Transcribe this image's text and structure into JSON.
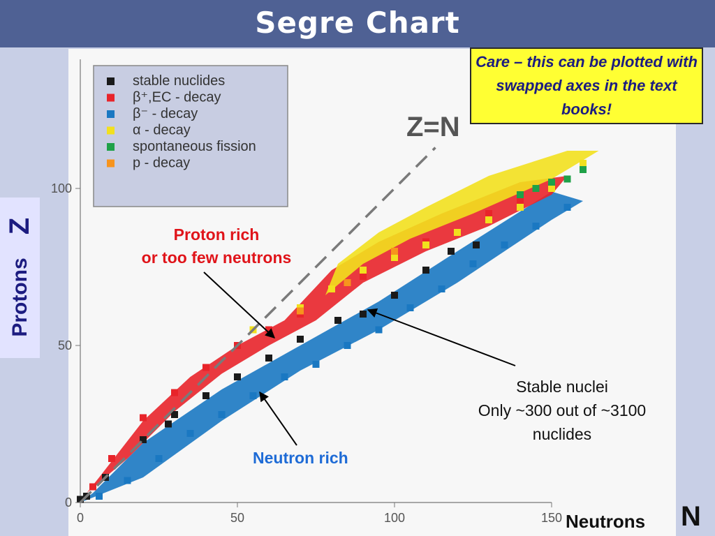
{
  "slide": {
    "title": "Segre Chart",
    "care_note": "Care – this can be plotted with swapped axes in the text books!",
    "zn_label": "Z=N",
    "z_letter": "Z",
    "protons_label": "Protons",
    "neutrons_label": "Neutrons",
    "n_letter": "N",
    "annotations": {
      "proton_rich_line1": "Proton rich",
      "proton_rich_line2": "or too few neutrons",
      "neutron_rich": "Neutron rich",
      "stable_line1": "Stable nuclei",
      "stable_line2": "Only ~300 out of ~3100",
      "stable_line3": "nuclides"
    }
  },
  "chart_data": {
    "type": "scatter",
    "xlim": [
      0,
      190
    ],
    "ylim": [
      0,
      125
    ],
    "x_ticks": [
      0,
      50,
      100,
      150
    ],
    "y_ticks": [
      0,
      50,
      100
    ],
    "x_tick_labels": [
      "0",
      "50",
      "100",
      "150"
    ],
    "y_tick_labels": [
      "0",
      "50",
      "100"
    ],
    "legend_position": "top-left",
    "legend": [
      {
        "label": "stable nuclides",
        "color": "#1a1a1a"
      },
      {
        "label": "β⁺,EC - decay",
        "color": "#e8242a"
      },
      {
        "label": "β⁻ - decay",
        "color": "#1a78c2"
      },
      {
        "label": "α - decay",
        "color": "#f2e01e"
      },
      {
        "label": "spontaneous fission",
        "color": "#1fa148"
      },
      {
        "label": "p - decay",
        "color": "#f7941d"
      }
    ],
    "reference_line": {
      "label": "Z=N",
      "from": [
        0,
        0
      ],
      "to": [
        113,
        113
      ]
    },
    "series": [
      {
        "name": "stable nuclides",
        "color": "#1a1a1a",
        "x": [
          0,
          2,
          8,
          20,
          28,
          30,
          40,
          50,
          60,
          70,
          82,
          90,
          100,
          110,
          118,
          126
        ],
        "y": [
          1,
          2,
          8,
          20,
          25,
          28,
          34,
          40,
          46,
          52,
          58,
          60,
          66,
          74,
          80,
          82
        ]
      },
      {
        "name": "β⁺,EC - decay",
        "color": "#e8242a",
        "x": [
          4,
          10,
          20,
          30,
          40,
          50,
          60,
          70,
          80,
          90,
          100,
          110,
          120,
          130,
          140,
          150
        ],
        "y": [
          5,
          14,
          27,
          35,
          43,
          50,
          55,
          60,
          68,
          72,
          78,
          83,
          86,
          92,
          96,
          101
        ]
      },
      {
        "name": "β⁻ - decay",
        "color": "#1a78c2",
        "x": [
          6,
          15,
          25,
          35,
          45,
          55,
          65,
          75,
          85,
          95,
          105,
          115,
          125,
          135,
          145,
          155
        ],
        "y": [
          2,
          7,
          14,
          22,
          28,
          34,
          40,
          44,
          50,
          55,
          62,
          68,
          76,
          82,
          88,
          94
        ]
      },
      {
        "name": "α - decay",
        "color": "#f2e01e",
        "x": [
          55,
          70,
          80,
          90,
          100,
          110,
          120,
          130,
          140,
          150,
          160
        ],
        "y": [
          55,
          62,
          68,
          74,
          78,
          82,
          86,
          90,
          94,
          100,
          108
        ]
      },
      {
        "name": "spontaneous fission",
        "color": "#1fa148",
        "x": [
          140,
          145,
          150,
          155,
          160
        ],
        "y": [
          98,
          100,
          102,
          103,
          106
        ]
      },
      {
        "name": "p - decay",
        "color": "#f7941d",
        "x": [
          70,
          85,
          100
        ],
        "y": [
          61,
          70,
          80
        ]
      }
    ]
  }
}
